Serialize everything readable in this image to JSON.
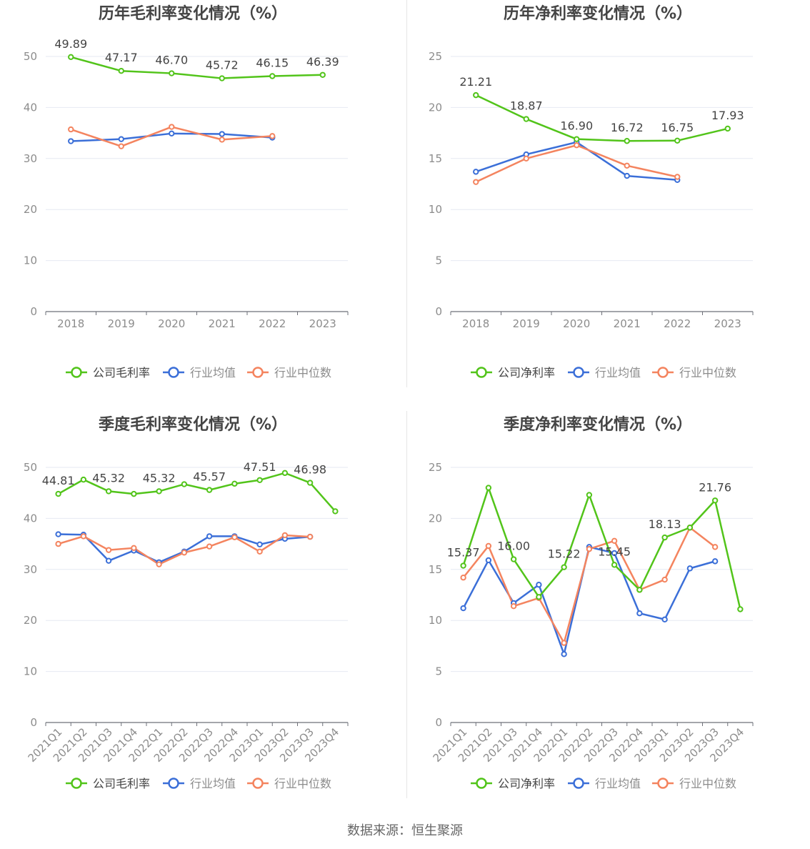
{
  "colors": {
    "company": "#52c41a",
    "industry_avg": "#3b6fd8",
    "industry_median": "#f4845f",
    "grid": "#e6e9f2",
    "axis": "#6e7079",
    "tick": "#8c8c8c"
  },
  "source_text": "数据来源：恒生聚源",
  "chart_data": [
    {
      "type": "line",
      "title": "历年毛利率变化情况（%）",
      "categories": [
        "2018",
        "2019",
        "2020",
        "2021",
        "2022",
        "2023"
      ],
      "ylim": [
        0,
        50
      ],
      "yticks": [
        0,
        10,
        20,
        30,
        40,
        50
      ],
      "legend_position": "bottom",
      "series": [
        {
          "name": "公司毛利率",
          "values": [
            49.89,
            47.17,
            46.7,
            45.72,
            46.15,
            46.39
          ],
          "labels": [
            "49.89",
            "47.17",
            "46.70",
            "45.72",
            "46.15",
            "46.39"
          ]
        },
        {
          "name": "行业均值",
          "values": [
            33.4,
            33.8,
            34.9,
            34.8,
            34.1,
            null
          ]
        },
        {
          "name": "行业中位数",
          "values": [
            35.7,
            32.4,
            36.2,
            33.7,
            34.4,
            null
          ]
        }
      ]
    },
    {
      "type": "line",
      "title": "历年净利率变化情况（%）",
      "categories": [
        "2018",
        "2019",
        "2020",
        "2021",
        "2022",
        "2023"
      ],
      "ylim": [
        0,
        25
      ],
      "yticks": [
        0,
        5,
        10,
        15,
        20,
        25
      ],
      "legend_position": "bottom",
      "series": [
        {
          "name": "公司净利率",
          "values": [
            21.21,
            18.87,
            16.9,
            16.72,
            16.75,
            17.93
          ],
          "labels": [
            "21.21",
            "18.87",
            "16.90",
            "16.72",
            "16.75",
            "17.93"
          ]
        },
        {
          "name": "行业均值",
          "values": [
            13.7,
            15.4,
            16.6,
            13.3,
            12.9,
            null
          ]
        },
        {
          "name": "行业中位数",
          "values": [
            12.7,
            15.0,
            16.3,
            14.3,
            13.2,
            null
          ]
        }
      ]
    },
    {
      "type": "line",
      "title": "季度毛利率变化情况（%）",
      "categories": [
        "2021Q1",
        "2021Q2",
        "2021Q3",
        "2021Q4",
        "2022Q1",
        "2022Q2",
        "2022Q3",
        "2022Q4",
        "2023Q1",
        "2023Q2",
        "2023Q3",
        "2023Q4"
      ],
      "ylim": [
        0,
        50
      ],
      "yticks": [
        0,
        10,
        20,
        30,
        40,
        50
      ],
      "rotate_x_labels": true,
      "legend_position": "bottom",
      "series": [
        {
          "name": "公司毛利率",
          "values": [
            44.81,
            47.6,
            45.32,
            44.8,
            45.32,
            46.7,
            45.57,
            46.8,
            47.51,
            48.9,
            46.98,
            41.4
          ],
          "labels": [
            "44.81",
            "",
            "45.32",
            "",
            "45.32",
            "",
            "45.57",
            "",
            "47.51",
            "",
            "46.98",
            ""
          ]
        },
        {
          "name": "行业均值",
          "values": [
            36.9,
            36.8,
            31.7,
            33.7,
            31.4,
            33.5,
            36.5,
            36.5,
            34.9,
            36.0,
            36.4,
            null
          ]
        },
        {
          "name": "行业中位数",
          "values": [
            35.0,
            36.5,
            33.8,
            34.2,
            31.0,
            33.3,
            34.5,
            36.3,
            33.5,
            36.7,
            36.4,
            null
          ]
        }
      ]
    },
    {
      "type": "line",
      "title": "季度净利率变化情况（%）",
      "categories": [
        "2021Q1",
        "2021Q2",
        "2021Q3",
        "2021Q4",
        "2022Q1",
        "2022Q2",
        "2022Q3",
        "2022Q4",
        "2023Q1",
        "2023Q2",
        "2023Q3",
        "2023Q4"
      ],
      "ylim": [
        0,
        25
      ],
      "yticks": [
        0,
        5,
        10,
        15,
        20,
        25
      ],
      "rotate_x_labels": true,
      "legend_position": "bottom",
      "series": [
        {
          "name": "公司净利率",
          "values": [
            15.37,
            23.0,
            16.0,
            12.3,
            15.22,
            22.3,
            15.45,
            13.0,
            18.13,
            19.1,
            21.76,
            11.1
          ],
          "labels": [
            "15.37",
            "",
            "16.00",
            "",
            "15.22",
            "",
            "15.45",
            "",
            "18.13",
            "",
            "21.76",
            ""
          ]
        },
        {
          "name": "行业均值",
          "values": [
            11.2,
            15.9,
            11.7,
            13.5,
            6.7,
            17.2,
            16.6,
            10.7,
            10.1,
            15.1,
            15.8,
            null
          ]
        },
        {
          "name": "行业中位数",
          "values": [
            14.2,
            17.3,
            11.4,
            12.2,
            7.8,
            17.0,
            17.8,
            13.0,
            14.0,
            19.1,
            17.2,
            null
          ]
        }
      ]
    }
  ]
}
